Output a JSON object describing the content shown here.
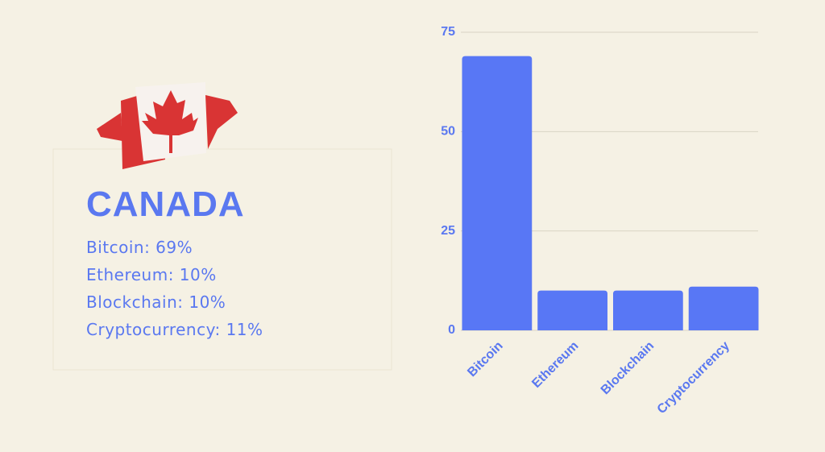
{
  "country": "CANADA",
  "stats": [
    "Bitcoin: 69%",
    "Ethereum: 10%",
    "Blockchain: 10%",
    "Cryptocurrency: 11%"
  ],
  "chart_data": {
    "type": "bar",
    "categories": [
      "Bitcoin",
      "Ethereum",
      "Blockchain",
      "Cryptocurrency"
    ],
    "values": [
      69,
      10,
      10,
      11
    ],
    "color": "#5877f5",
    "ylim": [
      0,
      75
    ],
    "yticks": [
      0,
      25,
      50,
      75
    ],
    "grid": true
  }
}
